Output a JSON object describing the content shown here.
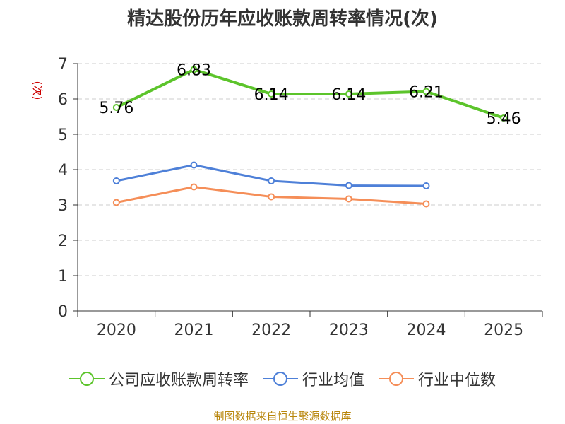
{
  "chart_data": {
    "type": "line",
    "title": "精达股份历年应收账款周转率情况(次)",
    "ylabel": "(次)",
    "xlabel": "",
    "ylim": [
      0,
      7
    ],
    "yticks": [
      0,
      1,
      2,
      3,
      4,
      5,
      6,
      7
    ],
    "categories": [
      "2020",
      "2021",
      "2022",
      "2023",
      "2024",
      "2025"
    ],
    "series": [
      {
        "name": "公司应收账款周转率",
        "color": "#5cc42b",
        "values": [
          5.76,
          6.83,
          6.14,
          6.14,
          6.21,
          5.46
        ],
        "labels": [
          "5.76",
          "6.83",
          "6.14",
          "6.14",
          "6.21",
          "5.46"
        ]
      },
      {
        "name": "行业均值",
        "color": "#4e80d8",
        "values": [
          3.68,
          4.13,
          3.68,
          3.55,
          3.54,
          null
        ]
      },
      {
        "name": "行业中位数",
        "color": "#f58e58",
        "values": [
          3.07,
          3.51,
          3.23,
          3.17,
          3.03,
          null
        ]
      }
    ]
  },
  "source": "制图数据来自恒生聚源数据库"
}
